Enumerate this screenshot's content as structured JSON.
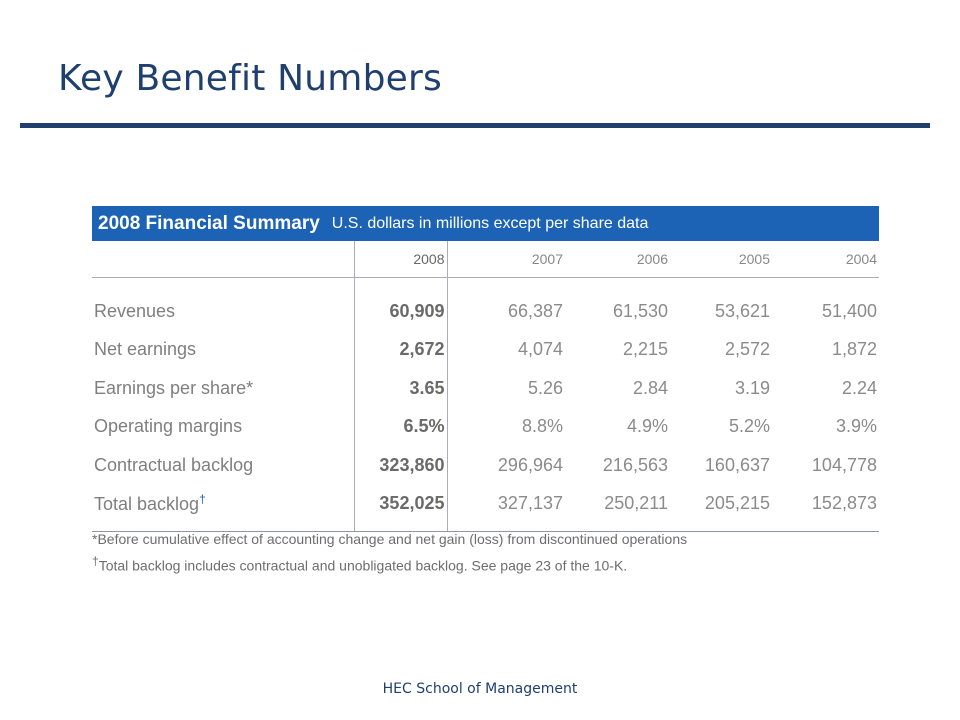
{
  "slide": {
    "title": "Key Benefit Numbers",
    "footer": "HEC School of Management"
  },
  "table": {
    "title": "2008 Financial Summary",
    "subtitle": "U.S. dollars in millions except per share data",
    "years": [
      "2008",
      "2007",
      "2006",
      "2005",
      "2004"
    ],
    "rows": [
      {
        "label": "Revenues",
        "values": [
          "60,909",
          "66,387",
          "61,530",
          "53,621",
          "51,400"
        ]
      },
      {
        "label": "Net earnings",
        "values": [
          "2,672",
          "4,074",
          "2,215",
          "2,572",
          "1,872"
        ]
      },
      {
        "label": "Earnings per share*",
        "values": [
          "3.65",
          "5.26",
          "2.84",
          "3.19",
          "2.24"
        ]
      },
      {
        "label": "Operating margins",
        "values": [
          "6.5%",
          "8.8%",
          "4.9%",
          "5.2%",
          "3.9%"
        ]
      },
      {
        "label": "Contractual backlog",
        "values": [
          "323,860",
          "296,964",
          "216,563",
          "160,637",
          "104,778"
        ]
      },
      {
        "label": "Total backlog",
        "label_mark": "†",
        "values": [
          "352,025",
          "327,137",
          "250,211",
          "205,215",
          "152,873"
        ]
      }
    ],
    "footnotes": [
      {
        "mark": "",
        "text": "*Before cumulative effect of accounting change and net gain (loss) from discontinued operations"
      },
      {
        "mark": "†",
        "text": "Total backlog includes contractual and unobligated backlog. See page 23 of the 10-K."
      }
    ]
  }
}
